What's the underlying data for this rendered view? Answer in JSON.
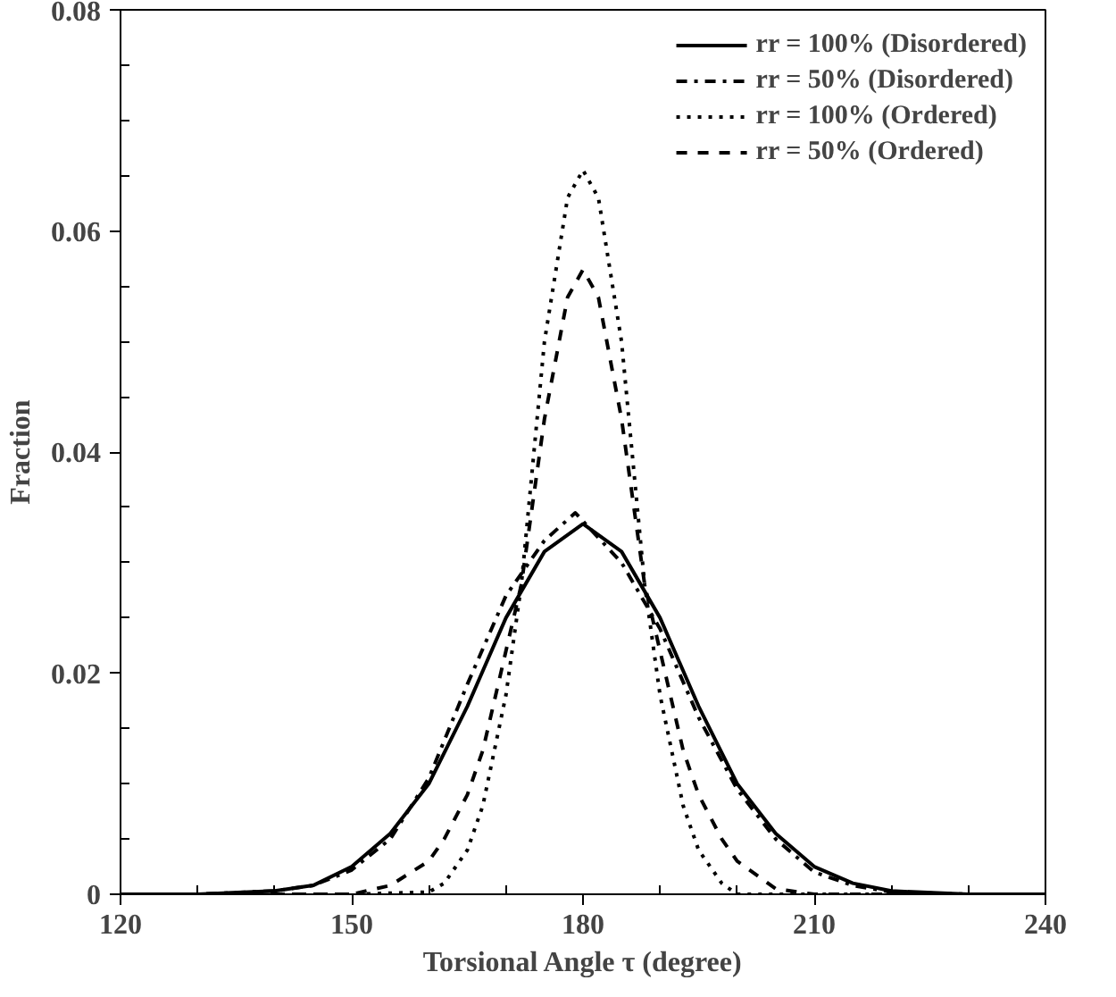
{
  "chart_data": {
    "type": "line",
    "xlabel": "Torsional Angle τ (degree)",
    "ylabel": "Fraction",
    "xlim": [
      120,
      240
    ],
    "ylim": [
      0,
      0.08
    ],
    "xticks": [
      120,
      {
        "value": 130,
        "label": null
      },
      {
        "value": 140,
        "label": null
      },
      150,
      {
        "value": 160,
        "label": null
      },
      {
        "value": 170,
        "label": null
      },
      180,
      {
        "value": 190,
        "label": null
      },
      {
        "value": 200,
        "label": null
      },
      210,
      {
        "value": 220,
        "label": null
      },
      {
        "value": 230,
        "label": null
      },
      240
    ],
    "yticks": [
      {
        "value": 0,
        "label": "0"
      },
      {
        "value": 0.005,
        "label": null
      },
      {
        "value": 0.01,
        "label": null
      },
      {
        "value": 0.015,
        "label": null
      },
      {
        "value": 0.02,
        "label": "0.02"
      },
      {
        "value": 0.025,
        "label": null
      },
      {
        "value": 0.03,
        "label": null
      },
      {
        "value": 0.035,
        "label": null
      },
      {
        "value": 0.04,
        "label": "0.04"
      },
      {
        "value": 0.045,
        "label": null
      },
      {
        "value": 0.05,
        "label": null
      },
      {
        "value": 0.055,
        "label": null
      },
      {
        "value": 0.06,
        "label": "0.06"
      },
      {
        "value": 0.065,
        "label": null
      },
      {
        "value": 0.07,
        "label": null
      },
      {
        "value": 0.075,
        "label": null
      },
      {
        "value": 0.08,
        "label": "0.08"
      }
    ],
    "grid": false,
    "legend": "top right",
    "series": [
      {
        "name": "rr = 100% (Disordered)",
        "color": "#000000",
        "line_style": "solid",
        "x": [
          120,
          130,
          140,
          145,
          150,
          155,
          160,
          165,
          170,
          175,
          180,
          185,
          190,
          195,
          200,
          205,
          210,
          215,
          220,
          230,
          240
        ],
        "values": [
          0,
          0,
          0.0003,
          0.0008,
          0.0025,
          0.0055,
          0.01,
          0.017,
          0.025,
          0.031,
          0.0335,
          0.031,
          0.025,
          0.017,
          0.01,
          0.0055,
          0.0025,
          0.001,
          0.0003,
          0,
          0
        ]
      },
      {
        "name": "rr = 50% (Disordered)",
        "color": "#000000",
        "line_style": "dashdot",
        "x": [
          120,
          130,
          140,
          145,
          150,
          155,
          160,
          165,
          170,
          175,
          179,
          185,
          190,
          195,
          200,
          205,
          210,
          215,
          220,
          230,
          240
        ],
        "values": [
          0,
          0,
          0.0003,
          0.0008,
          0.0022,
          0.005,
          0.0105,
          0.019,
          0.027,
          0.032,
          0.0345,
          0.03,
          0.024,
          0.016,
          0.0095,
          0.005,
          0.002,
          0.0008,
          0.0002,
          0,
          0
        ]
      },
      {
        "name": "rr = 100% (Ordered)",
        "color": "#000000",
        "line_style": "dotted",
        "x": [
          120,
          150,
          160,
          162,
          165,
          167,
          170,
          172,
          175,
          178,
          180,
          182,
          185,
          188,
          190,
          193,
          195,
          198,
          200,
          210,
          240
        ],
        "values": [
          0,
          0,
          0.0002,
          0.001,
          0.004,
          0.008,
          0.018,
          0.028,
          0.05,
          0.063,
          0.0655,
          0.063,
          0.05,
          0.028,
          0.018,
          0.008,
          0.004,
          0.001,
          0,
          0,
          0
        ]
      },
      {
        "name": "rr = 50% (Ordered)",
        "color": "#000000",
        "line_style": "dashed",
        "x": [
          120,
          150,
          155,
          160,
          162,
          165,
          167,
          170,
          172,
          175,
          178,
          180,
          182,
          185,
          188,
          190,
          193,
          195,
          198,
          200,
          205,
          210,
          240
        ],
        "values": [
          0,
          0,
          0.0008,
          0.003,
          0.005,
          0.009,
          0.013,
          0.022,
          0.028,
          0.043,
          0.054,
          0.0565,
          0.054,
          0.043,
          0.028,
          0.022,
          0.013,
          0.009,
          0.005,
          0.003,
          0.0005,
          0,
          0
        ]
      }
    ]
  }
}
